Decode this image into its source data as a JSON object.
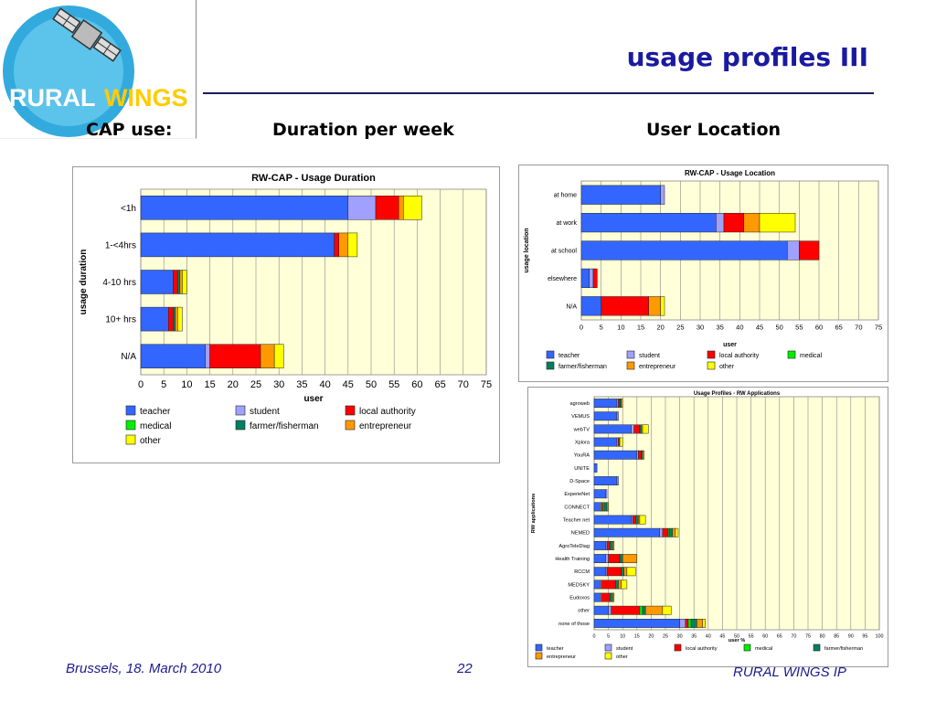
{
  "slide": {
    "title": "usage profiles III",
    "cap_use": "CAP use:",
    "duration_heading": "Duration per week",
    "location_heading": "User Location",
    "footer_left": "Brussels, 18. March 2010",
    "page_number": "22",
    "footer_right": "RURAL WINGS IP",
    "logo_text_a": "RURAL",
    "logo_text_b": "WINGS"
  },
  "colors": {
    "teacher": "#3366ff",
    "student": "#a0a0ff",
    "local authority": "#ff0000",
    "medical": "#00ee00",
    "farmer/fisherman": "#008060",
    "entrepreneur": "#ff9900",
    "other": "#ffff00",
    "plot_bg": "#ffffd8",
    "title_blue": "#1a1aa0"
  },
  "chart_data": [
    {
      "type": "bar",
      "orientation": "horizontal",
      "stacked": true,
      "title": "RW-CAP - Usage Duration",
      "xlabel": "user",
      "ylabel": "usage duration",
      "xlim": [
        0,
        75
      ],
      "xticks": [
        0,
        5,
        10,
        15,
        20,
        25,
        30,
        35,
        40,
        45,
        50,
        55,
        60,
        65,
        70,
        75
      ],
      "grid": "vertical",
      "legend": "bottom",
      "categories": [
        "<1h",
        "1-<4hrs",
        "4-10 hrs",
        "10+ hrs",
        "N/A"
      ],
      "series": [
        {
          "name": "teacher",
          "values": [
            45,
            42,
            7,
            6,
            14
          ]
        },
        {
          "name": "student",
          "values": [
            6,
            0,
            0,
            0,
            1
          ]
        },
        {
          "name": "local authority",
          "values": [
            5,
            1,
            1,
            1,
            11
          ]
        },
        {
          "name": "medical",
          "values": [
            0,
            0,
            0,
            0,
            0
          ]
        },
        {
          "name": "farmer/fisherman",
          "values": [
            0,
            0,
            0.5,
            0.5,
            0
          ]
        },
        {
          "name": "entrepreneur",
          "values": [
            1,
            2,
            0.5,
            0.5,
            3
          ]
        },
        {
          "name": "other",
          "values": [
            4,
            2,
            1,
            1,
            2
          ]
        }
      ]
    },
    {
      "type": "bar",
      "orientation": "horizontal",
      "stacked": true,
      "title": "RW-CAP - Usage Location",
      "xlabel": "user",
      "ylabel": "usage location",
      "xlim": [
        0,
        75
      ],
      "xticks": [
        0,
        5,
        10,
        15,
        20,
        25,
        30,
        35,
        40,
        45,
        50,
        55,
        60,
        65,
        70,
        75
      ],
      "grid": "vertical",
      "legend": "bottom",
      "categories": [
        "at home",
        "at work",
        "at school",
        "elsewhere",
        "N/A"
      ],
      "series": [
        {
          "name": "teacher",
          "values": [
            20,
            34,
            52,
            2,
            5
          ]
        },
        {
          "name": "student",
          "values": [
            1,
            2,
            3,
            1,
            0
          ]
        },
        {
          "name": "local authority",
          "values": [
            0,
            5,
            5,
            1,
            12
          ]
        },
        {
          "name": "medical",
          "values": [
            0,
            0,
            0,
            0,
            0
          ]
        },
        {
          "name": "farmer/fisherman",
          "values": [
            0,
            0,
            0,
            0,
            0
          ]
        },
        {
          "name": "entrepreneur",
          "values": [
            0,
            4,
            0,
            0,
            3
          ]
        },
        {
          "name": "other",
          "values": [
            0,
            9,
            0,
            0,
            1
          ]
        }
      ]
    },
    {
      "type": "bar",
      "orientation": "horizontal",
      "stacked": true,
      "title": "Usage Profiles - RW Applications",
      "xlabel": "user %",
      "ylabel": "RW applications",
      "xlim": [
        0,
        100
      ],
      "xticks": [
        0,
        5,
        10,
        15,
        20,
        25,
        30,
        35,
        40,
        45,
        50,
        55,
        60,
        65,
        70,
        75,
        80,
        85,
        90,
        95,
        100
      ],
      "grid": "vertical",
      "legend": "bottom",
      "categories": [
        "agroweb",
        "VEMUS",
        "webTV",
        "Xplora",
        "YouRA",
        "UNITE",
        "D-Space",
        "ExperieNet",
        "CONNECT",
        "Teacher net",
        "NEMED",
        "AgroTeleDiag",
        "Health Training",
        "RCCM",
        "MEDSKY",
        "Eudoxos",
        "other",
        "none of those"
      ],
      "series": [
        {
          "name": "teacher",
          "values": [
            8,
            8,
            13,
            8,
            15,
            1,
            8,
            4,
            2,
            13,
            23,
            4,
            4,
            4,
            2,
            2,
            5,
            30
          ]
        },
        {
          "name": "student",
          "values": [
            0.5,
            0.5,
            1,
            0.5,
            0.5,
            0,
            0.5,
            0.5,
            0.5,
            0.5,
            1,
            0.5,
            1,
            0.5,
            0.5,
            0.5,
            1,
            2
          ]
        },
        {
          "name": "local authority",
          "values": [
            0.5,
            0,
            2,
            0.5,
            1,
            0,
            0,
            0,
            0.5,
            1,
            2,
            1,
            4,
            5,
            5,
            3,
            10,
            1
          ]
        },
        {
          "name": "medical",
          "values": [
            0,
            0,
            0,
            0,
            0,
            0,
            0,
            0,
            0.5,
            0,
            0.5,
            0,
            0,
            0,
            0,
            0,
            1,
            1
          ]
        },
        {
          "name": "farmer/fisherman",
          "values": [
            0.5,
            0,
            0.5,
            0,
            0.5,
            0,
            0,
            0,
            1,
            1,
            1,
            1,
            1,
            1,
            1,
            1,
            1,
            2
          ]
        },
        {
          "name": "entrepreneur",
          "values": [
            0.5,
            0,
            0.5,
            0,
            0.5,
            0,
            0,
            0,
            0.5,
            0.5,
            1,
            0.5,
            5,
            1,
            1,
            0.5,
            6,
            2
          ]
        },
        {
          "name": "other",
          "values": [
            0,
            0,
            2,
            1,
            0,
            0,
            0,
            0,
            0,
            2,
            1,
            0,
            0,
            3,
            2,
            0,
            3,
            1
          ]
        }
      ]
    }
  ]
}
